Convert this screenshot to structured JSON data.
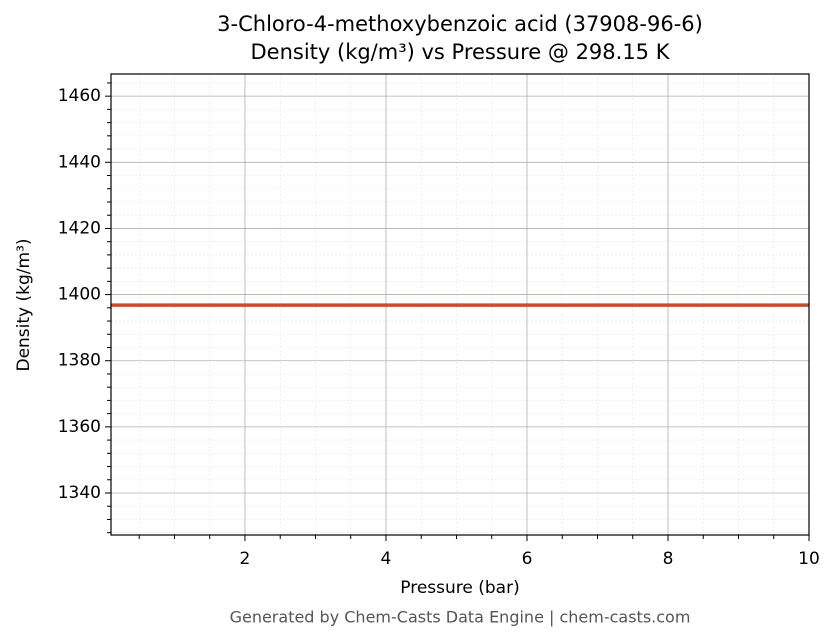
{
  "chart_data": {
    "type": "line",
    "title": "3-Chloro-4-methoxybenzoic acid (37908-96-6)",
    "subtitle": "Density (kg/m³) vs Pressure @ 298.15 K",
    "x_label": "Pressure (bar)",
    "y_label": "Density (kg/m³)",
    "footer": "Generated by Chem-Casts Data Engine | chem-casts.com",
    "x": [
      0.1,
      10
    ],
    "series": [
      {
        "name": "Density",
        "color": "#c0522b",
        "values": [
          1396.8,
          1396.8
        ]
      }
    ],
    "xlim": [
      0.1,
      10
    ],
    "ylim": [
      1327.3,
      1466.7
    ],
    "xticks": [
      2,
      4,
      6,
      8,
      10
    ],
    "yticks": [
      1340,
      1360,
      1380,
      1400,
      1420,
      1440,
      1460
    ],
    "xminorticks": [
      0.5,
      1,
      1.5,
      2.5,
      3,
      3.5,
      4.5,
      5,
      5.5,
      6.5,
      7,
      7.5,
      8.5,
      9,
      9.5
    ],
    "yminorticks": [
      1328,
      1332,
      1336,
      1344,
      1348,
      1352,
      1356,
      1364,
      1368,
      1372,
      1376,
      1384,
      1388,
      1392,
      1396,
      1404,
      1408,
      1412,
      1416,
      1424,
      1428,
      1432,
      1436,
      1444,
      1448,
      1452,
      1456,
      1464
    ],
    "grid": true
  }
}
